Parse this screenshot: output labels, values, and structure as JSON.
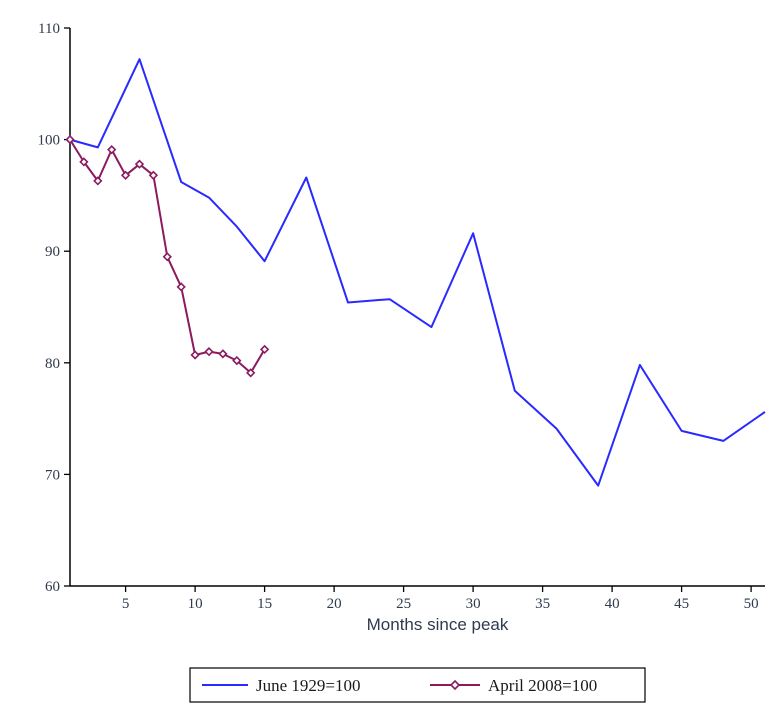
{
  "chart_data": {
    "type": "line",
    "title": "",
    "xlabel": "Months since peak",
    "ylabel": "",
    "xlim": [
      1,
      51
    ],
    "ylim": [
      60,
      110
    ],
    "x_ticks": [
      5,
      10,
      15,
      20,
      25,
      30,
      35,
      40,
      45,
      50
    ],
    "y_ticks": [
      60,
      70,
      80,
      90,
      100,
      110
    ],
    "grid": false,
    "legend_position": "bottom",
    "series": [
      {
        "name": "June 1929=100",
        "color": "#2a2aff",
        "marker": "none",
        "x": [
          1,
          3,
          6,
          9,
          11,
          13,
          15,
          18,
          21,
          24,
          27,
          30,
          33,
          36,
          39,
          42,
          45,
          48,
          51
        ],
        "y": [
          100,
          99.3,
          107.2,
          96.2,
          94.8,
          92.2,
          89.1,
          96.6,
          85.4,
          85.7,
          83.2,
          91.6,
          77.5,
          74.1,
          69,
          79.8,
          73.9,
          73,
          75.6
        ]
      },
      {
        "name": "April 2008=100",
        "color": "#8b1a5e",
        "marker": "diamond",
        "x": [
          1,
          2,
          3,
          4,
          5,
          6,
          7,
          8,
          9,
          10,
          11,
          12,
          13,
          14,
          15
        ],
        "y": [
          100,
          98,
          96.3,
          99.1,
          96.8,
          97.8,
          96.8,
          89.5,
          86.8,
          80.7,
          81,
          80.8,
          80.2,
          79.1,
          81.2
        ]
      }
    ]
  }
}
